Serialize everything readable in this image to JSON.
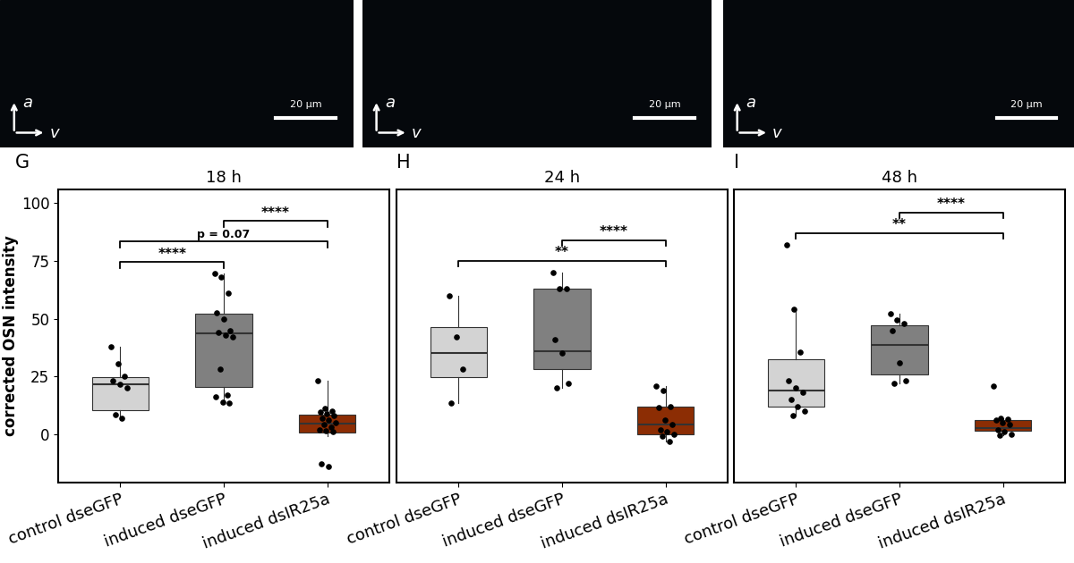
{
  "image_panels": [
    {
      "scale_bar": "20 µm",
      "arrows": [
        "a",
        "v"
      ]
    },
    {
      "scale_bar": "20 µm",
      "arrows": [
        "a",
        "v"
      ]
    },
    {
      "scale_bar": "20 µm",
      "arrows": [
        "a",
        "v"
      ]
    }
  ],
  "chart_data": [
    {
      "type": "box",
      "panel_label": "G",
      "title": "18 h",
      "y_label": "corrected OSN intensity",
      "categories": [
        "control dseGFP",
        "induced dseGFP",
        "induced dsIR25a"
      ],
      "colors": [
        "#d3d3d3",
        "#808080",
        "#8c2d04"
      ],
      "ylim": [
        -21,
        106
      ],
      "yticks": [
        0,
        25,
        50,
        75,
        100
      ],
      "tick_labels": true,
      "boxes": [
        {
          "q1": 10.5,
          "median": 21.5,
          "q3": 24.5,
          "whisker_low": 7,
          "whisker_high": 38
        },
        {
          "q1": 20.5,
          "median": 43.5,
          "q3": 52,
          "whisker_low": 13.5,
          "whisker_high": 69.5
        },
        {
          "q1": 0.5,
          "median": 4.5,
          "q3": 8.5,
          "whisker_low": -1,
          "whisker_high": 23
        }
      ],
      "points": [
        [
          38,
          30.5,
          25,
          23,
          21.5,
          20,
          8.5,
          7
        ],
        [
          69.5,
          68,
          61,
          52.5,
          50,
          45,
          44,
          43,
          42,
          28,
          17,
          16,
          14,
          13.5
        ],
        [
          23,
          11,
          10,
          9.5,
          9,
          8,
          7,
          6,
          5,
          4,
          3,
          2,
          1.5,
          1,
          -13,
          -14
        ]
      ],
      "comparisons": [
        {
          "groups": [
            "control dseGFP",
            "induced dseGFP"
          ],
          "label": "****"
        },
        {
          "groups": [
            "control dseGFP",
            "induced dsIR25a"
          ],
          "label": "p = 0.07"
        },
        {
          "groups": [
            "induced dseGFP",
            "induced dsIR25a"
          ],
          "label": "****"
        }
      ]
    },
    {
      "type": "box",
      "panel_label": "H",
      "title": "24 h",
      "categories": [
        "control dseGFP",
        "induced dseGFP",
        "induced dsIR25a"
      ],
      "colors": [
        "#d3d3d3",
        "#808080",
        "#8c2d04"
      ],
      "ylim": [
        -21,
        106
      ],
      "yticks": [
        0,
        25,
        50,
        75,
        100
      ],
      "tick_labels": "x",
      "boxes": [
        {
          "q1": 24.5,
          "median": 35,
          "q3": 46.5,
          "whisker_low": 13.5,
          "whisker_high": 60
        },
        {
          "q1": 28,
          "median": 36,
          "q3": 63,
          "whisker_low": 20,
          "whisker_high": 70
        },
        {
          "q1": 0,
          "median": 4,
          "q3": 12,
          "whisker_low": -3,
          "whisker_high": 21
        }
      ],
      "points": [
        [
          60,
          42,
          28,
          13.5
        ],
        [
          70,
          63,
          63,
          41,
          35,
          22,
          20
        ],
        [
          21,
          19,
          12,
          11.5,
          6,
          4,
          2,
          1,
          0,
          -1,
          -3
        ]
      ],
      "comparisons": [
        {
          "groups": [
            "control dseGFP",
            "induced dsIR25a"
          ],
          "label": "**"
        },
        {
          "groups": [
            "induced dseGFP",
            "induced dsIR25a"
          ],
          "label": "****"
        }
      ]
    },
    {
      "type": "box",
      "panel_label": "I",
      "title": "48 h",
      "categories": [
        "control dseGFP",
        "induced dseGFP",
        "induced dsIR25a"
      ],
      "colors": [
        "#d3d3d3",
        "#808080",
        "#8c2d04"
      ],
      "ylim": [
        -21,
        106
      ],
      "yticks": [
        0,
        25,
        50,
        75,
        100
      ],
      "tick_labels": "x",
      "boxes": [
        {
          "q1": 12,
          "median": 19,
          "q3": 32.5,
          "whisker_low": 8,
          "whisker_high": 54
        },
        {
          "q1": 26,
          "median": 38.5,
          "q3": 47,
          "whisker_low": 22,
          "whisker_high": 52
        },
        {
          "q1": 1.5,
          "median": 2.5,
          "q3": 6,
          "whisker_low": -0.5,
          "whisker_high": 7
        }
      ],
      "points": [
        [
          82,
          54,
          35.5,
          23,
          20,
          18,
          15,
          12,
          10,
          8
        ],
        [
          52,
          49.5,
          48,
          45,
          31,
          23,
          22
        ],
        [
          21,
          7,
          6.5,
          6,
          5,
          4,
          2,
          1,
          0,
          -0.5
        ]
      ],
      "comparisons": [
        {
          "groups": [
            "control dseGFP",
            "induced dsIR25a"
          ],
          "label": "**"
        },
        {
          "groups": [
            "induced dseGFP",
            "induced dsIR25a"
          ],
          "label": "****"
        }
      ]
    }
  ]
}
